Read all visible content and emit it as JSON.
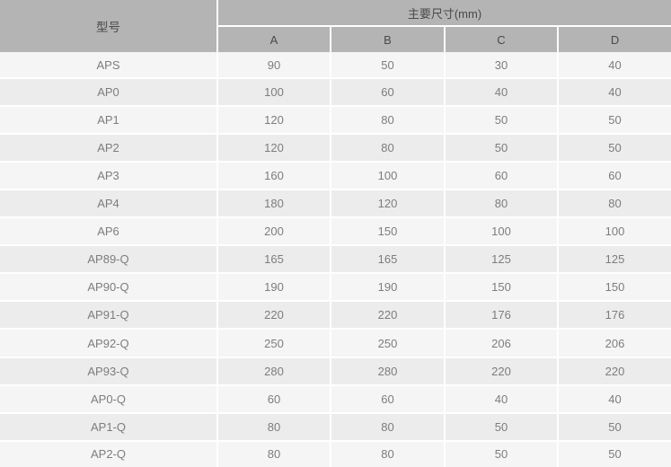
{
  "chart_data": {
    "type": "table",
    "model_column_header": "型号",
    "dimensions_group_header": "主要尺寸(mm)",
    "dimension_columns": [
      "A",
      "B",
      "C",
      "D"
    ],
    "rows": [
      {
        "model": "APS",
        "values": [
          "90",
          "50",
          "30",
          "40"
        ]
      },
      {
        "model": "AP0",
        "values": [
          "100",
          "60",
          "40",
          "40"
        ]
      },
      {
        "model": "AP1",
        "values": [
          "120",
          "80",
          "50",
          "50"
        ]
      },
      {
        "model": "AP2",
        "values": [
          "120",
          "80",
          "50",
          "50"
        ]
      },
      {
        "model": "AP3",
        "values": [
          "160",
          "100",
          "60",
          "60"
        ]
      },
      {
        "model": "AP4",
        "values": [
          "180",
          "120",
          "80",
          "80"
        ]
      },
      {
        "model": "AP6",
        "values": [
          "200",
          "150",
          "100",
          "100"
        ]
      },
      {
        "model": "AP89-Q",
        "values": [
          "165",
          "165",
          "125",
          "125"
        ]
      },
      {
        "model": "AP90-Q",
        "values": [
          "190",
          "190",
          "150",
          "150"
        ]
      },
      {
        "model": "AP91-Q",
        "values": [
          "220",
          "220",
          "176",
          "176"
        ]
      },
      {
        "model": "AP92-Q",
        "values": [
          "250",
          "250",
          "206",
          "206"
        ]
      },
      {
        "model": "AP93-Q",
        "values": [
          "280",
          "280",
          "220",
          "220"
        ]
      },
      {
        "model": "AP0-Q",
        "values": [
          "60",
          "60",
          "40",
          "40"
        ]
      },
      {
        "model": "AP1-Q",
        "values": [
          "80",
          "80",
          "50",
          "50"
        ]
      },
      {
        "model": "AP2-Q",
        "values": [
          "80",
          "80",
          "50",
          "50"
        ]
      }
    ]
  },
  "colors": {
    "header_bg": "#b4b4b4",
    "header_text": "#4a4a4a",
    "row_light": "#f5f5f5",
    "row_dark": "#ececec",
    "cell_text": "#7d7d7d",
    "grid_line": "#ffffff"
  }
}
